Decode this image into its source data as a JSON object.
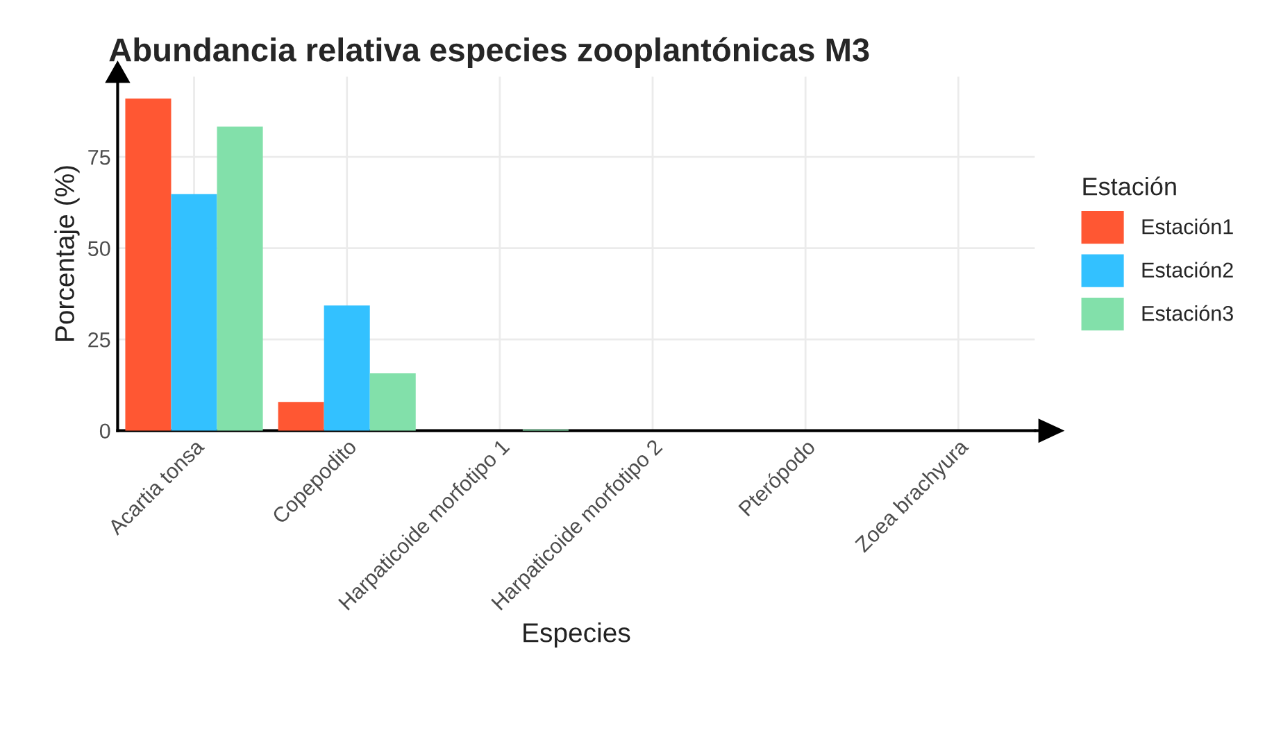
{
  "chart_data": {
    "type": "bar",
    "title": "Abundancia relativa especies zooplantónicas M3",
    "xlabel": "Especies",
    "ylabel": "Porcentaje (%)",
    "legend_title": "Estación",
    "categories": [
      "Acartia tonsa",
      "Copepodito",
      "Harpaticoide morfotipo 1",
      "Harpaticoide morfotipo 2",
      "Pterópodo",
      "Zoea brachyura"
    ],
    "series": [
      {
        "name": "Estación1",
        "color": "#ff5733",
        "values": [
          91.0,
          7.9,
          0,
          0,
          0,
          0
        ]
      },
      {
        "name": "Estación2",
        "color": "#33c1ff",
        "values": [
          64.8,
          34.3,
          0,
          0,
          0,
          0
        ]
      },
      {
        "name": "Estación3",
        "color": "#82e0aa",
        "values": [
          83.3,
          15.7,
          0.3,
          0,
          0,
          0
        ]
      }
    ],
    "ylim": [
      0,
      97
    ],
    "yticks": [
      0,
      25,
      50,
      75
    ],
    "grid": true,
    "legend": "right"
  }
}
